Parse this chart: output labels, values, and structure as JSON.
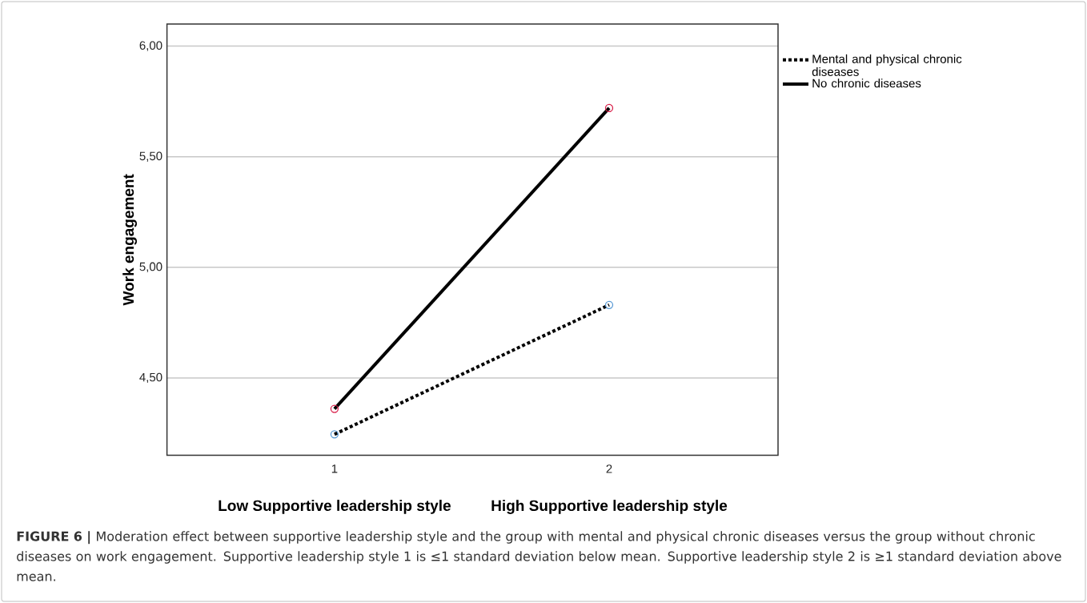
{
  "chart_data": {
    "type": "line",
    "categories": [
      "1",
      "2"
    ],
    "ylabel": "Work engagement",
    "ylim": [
      4.15,
      6.1
    ],
    "yticks": [
      {
        "value": 4.5,
        "label": "4,50"
      },
      {
        "value": 5,
        "label": "5,00"
      },
      {
        "value": 5.5,
        "label": "5,50"
      },
      {
        "value": 6,
        "label": "6,00"
      }
    ],
    "grid": "y",
    "legend": "top right",
    "marker": "circle",
    "series": [
      {
        "name": "Mental and physical chronic diseases",
        "color": "#000000",
        "colors": [
          "#5b9bd5",
          "#5b9bd5"
        ],
        "line_style": "dotted",
        "values": [
          4.245,
          4.83
        ]
      },
      {
        "name": "No chronic diseases",
        "color": "#000000",
        "colors": [
          "#d9214b",
          "#d9214b"
        ],
        "line_style": "solid",
        "values": [
          4.36,
          5.72
        ]
      }
    ],
    "annotations": [
      "Low Supportive leadership style",
      "High Supportive leadership style",
      "**FIGURE 6 |** Moderation effect between supportive leadership style and the group with mental and physical chronic diseases versus the group without chronic diseases on work engagement. Supportive leadership style 1 is ≤1 standard deviation below mean. Supportive leadership style 2 is ≥1 standard deviation above mean."
    ]
  }
}
